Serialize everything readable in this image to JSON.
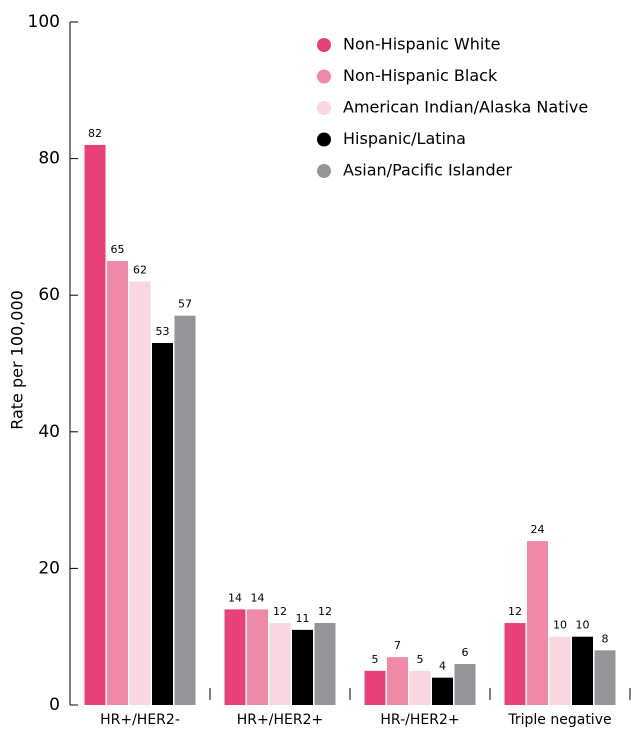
{
  "chart_data": {
    "type": "bar",
    "y_label": "Rate per 100,000",
    "categories": [
      "HR+/HER2-",
      "HR+/HER2+",
      "HR-/HER2+",
      "Triple negative"
    ],
    "series": [
      {
        "name": "Non-Hispanic White",
        "color": "#e8417a",
        "values": [
          82,
          14,
          5,
          12
        ]
      },
      {
        "name": "Non-Hispanic Black",
        "color": "#ee8aa8",
        "values": [
          65,
          14,
          7,
          24
        ]
      },
      {
        "name": "American Indian/Alaska Native",
        "color": "#f9d6e0",
        "values": [
          62,
          12,
          5,
          10
        ]
      },
      {
        "name": "Hispanic/Latina",
        "color": "#000000",
        "values": [
          53,
          11,
          4,
          10
        ]
      },
      {
        "name": "Asian/Pacific Islander",
        "color": "#939598",
        "values": [
          57,
          12,
          6,
          8
        ]
      }
    ],
    "ylim": [
      0,
      100
    ],
    "yticks": [
      0,
      20,
      40,
      60,
      80,
      100
    ]
  }
}
